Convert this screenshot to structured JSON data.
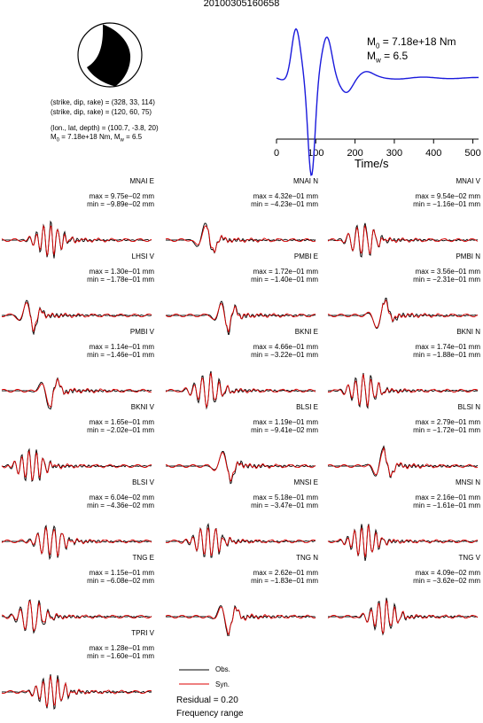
{
  "title": "20100305160658",
  "source_params": {
    "fault_plane_1": "(strike, dip, rake) = (328, 33, 114)",
    "fault_plane_2": "(strike, dip, rake) = (120, 60, 75)",
    "location": "(lon., lat, depth) = (100.7, -3.8, 20)",
    "moment_prefix": "M",
    "moment_sub": "0",
    "moment_mid": " = 7.18e+18 Nm, M",
    "mw_sub": "w",
    "mw_tail": " = 6.5"
  },
  "stf": {
    "xlabel": "Time/s",
    "ticks": [
      "0",
      "100",
      "200",
      "300",
      "400",
      "500"
    ],
    "m0_label": "M",
    "m0_sub": "0",
    "m0_value": " = 7.18e+18 Nm",
    "mw_label": "M",
    "mw_sub": "w",
    "mw_value": " = 6.5",
    "color": "#1a1adc"
  },
  "colors": {
    "observed": "#000000",
    "synthetic": "#dd0000"
  },
  "legend": {
    "obs_label": "Obs.",
    "syn_label": "Syn.",
    "residual": "Residual = 0.20",
    "frequency": "Frequency range"
  },
  "chart_data": {
    "type": "line",
    "description_free": true,
    "stations": [
      {
        "name": "MNAI E",
        "max": "max = 9.75e−02 mm",
        "min": "min = −9.89e−02 mm",
        "seed": 1,
        "style": "ringing"
      },
      {
        "name": "MNAI N",
        "max": "max = 4.32e−01 mm",
        "min": "min = −4.23e−01 mm",
        "seed": 2,
        "style": "pulse"
      },
      {
        "name": "MNAI V",
        "max": "max = 9.54e−02 mm",
        "min": "min = −1.16e−01 mm",
        "seed": 3,
        "style": "ringing"
      },
      {
        "name": "LHSI V",
        "max": "max = 1.30e−01 mm",
        "min": "min = −1.78e−01 mm",
        "seed": 4,
        "style": "pulse"
      },
      {
        "name": "PMBI E",
        "max": "max = 1.72e−01 mm",
        "min": "min = −1.40e−01 mm",
        "seed": 5,
        "style": "pulse"
      },
      {
        "name": "PMBI N",
        "max": "max = 3.56e−01 mm",
        "min": "min = −2.31e−01 mm",
        "seed": 6,
        "style": "pulse"
      },
      {
        "name": "PMBI V",
        "max": "max = 1.14e−01 mm",
        "min": "min = −1.46e−01 mm",
        "seed": 7,
        "style": "pulse"
      },
      {
        "name": "BKNI E",
        "max": "max = 4.66e−01 mm",
        "min": "min = −3.22e−01 mm",
        "seed": 8,
        "style": "ringing"
      },
      {
        "name": "BKNI N",
        "max": "max = 1.74e−01 mm",
        "min": "min = −1.88e−01 mm",
        "seed": 9,
        "style": "ringing"
      },
      {
        "name": "BKNI V",
        "max": "max = 1.65e−01 mm",
        "min": "min = −2.02e−01 mm",
        "seed": 10,
        "style": "ringing"
      },
      {
        "name": "BLSI E",
        "max": "max = 1.19e−01 mm",
        "min": "min = −9.41e−02 mm",
        "seed": 11,
        "style": "pulse"
      },
      {
        "name": "BLSI N",
        "max": "max = 2.79e−01 mm",
        "min": "min = −1.72e−01 mm",
        "seed": 12,
        "style": "pulse"
      },
      {
        "name": "BLSI V",
        "max": "max = 6.04e−02 mm",
        "min": "min = −4.36e−02 mm",
        "seed": 13,
        "style": "ringing"
      },
      {
        "name": "MNSI E",
        "max": "max = 5.18e−01 mm",
        "min": "min = −3.47e−01 mm",
        "seed": 14,
        "style": "ringing"
      },
      {
        "name": "MNSI N",
        "max": "max = 2.16e−01 mm",
        "min": "min = −1.61e−01 mm",
        "seed": 15,
        "style": "ringing"
      },
      {
        "name": "TNG E",
        "max": "max = 1.15e−01 mm",
        "min": "min = −6.08e−02 mm",
        "seed": 16,
        "style": "ringing"
      },
      {
        "name": "TNG N",
        "max": "max = 2.62e−01 mm",
        "min": "min = −1.83e−01 mm",
        "seed": 17,
        "style": "pulse"
      },
      {
        "name": "TNG V",
        "max": "max = 4.09e−02 mm",
        "min": "min = −3.62e−02 mm",
        "seed": 18,
        "style": "ringing"
      },
      {
        "name": "TPRI V",
        "max": "max = 1.28e−01 mm",
        "min": "min = −1.60e−01 mm",
        "seed": 19,
        "style": "ringing"
      }
    ]
  }
}
